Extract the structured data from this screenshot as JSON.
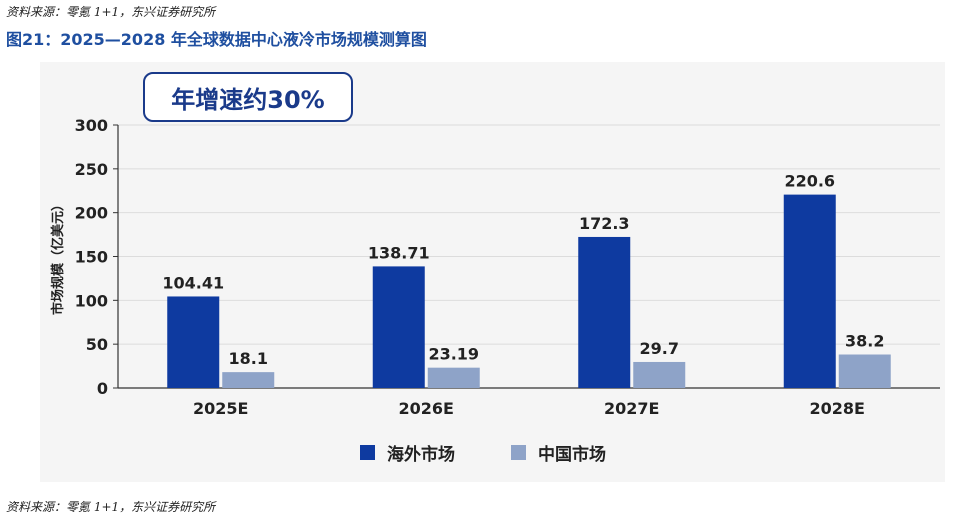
{
  "source_note": "资料来源：零氪 1+1，东兴证券研究所",
  "figure_title": "图21：2025—2028 年全球数据中心液冷市场规模测算图",
  "badge_text": "年增速约30%",
  "colors": {
    "overseas": "#0e3aa0",
    "china": "#8ea3c8",
    "title": "#1f4fa0"
  },
  "chart_data": {
    "type": "bar",
    "categories": [
      "2025E",
      "2026E",
      "2027E",
      "2028E"
    ],
    "series": [
      {
        "name": "海外市场",
        "values": [
          104.41,
          138.71,
          172.3,
          220.6
        ],
        "labels": [
          "104.41",
          "138.71",
          "172.3",
          "220.6"
        ]
      },
      {
        "name": "中国市场",
        "values": [
          18.1,
          23.19,
          29.7,
          38.2
        ],
        "labels": [
          "18.1",
          "23.19",
          "29.7",
          "38.2"
        ]
      }
    ],
    "ylabel": "市场规模（亿美元）",
    "ylim": [
      0,
      300
    ],
    "yticks": [
      0,
      50,
      100,
      150,
      200,
      250,
      300
    ],
    "grid": true,
    "legend_position": "bottom"
  }
}
